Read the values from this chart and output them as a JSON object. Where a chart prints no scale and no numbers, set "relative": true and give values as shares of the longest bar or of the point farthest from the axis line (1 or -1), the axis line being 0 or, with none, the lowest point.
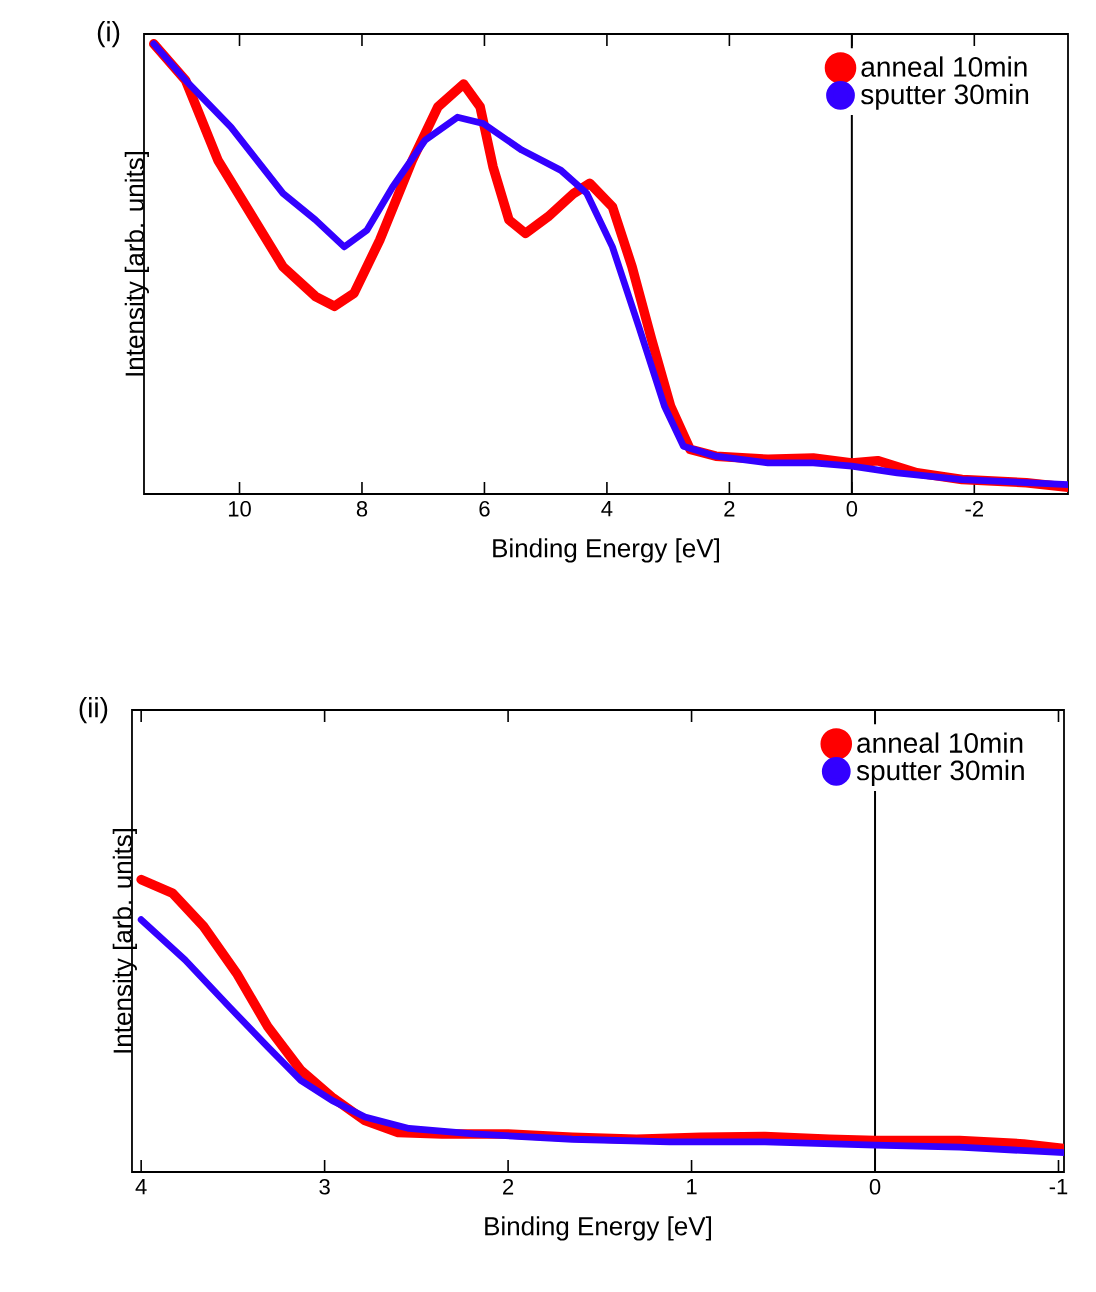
{
  "chart_data": [
    {
      "type": "line",
      "title": "(i)",
      "xlabel": "Binding Energy [eV]",
      "ylabel": "Intensity [arb. units]",
      "relative": true,
      "xlim": [
        11.56,
        -3.53
      ],
      "xticks": [
        10,
        8,
        6,
        4,
        2,
        0,
        -2
      ],
      "tick_labels": "x",
      "legend": "top right",
      "marker": "none",
      "line_style": "solid",
      "grid": false,
      "ref_lines": [
        {
          "axis": "x",
          "value": 0,
          "color": "#000000"
        }
      ],
      "series": [
        {
          "name": "anneal 10min",
          "color": "#ff0000",
          "x": [
            11.4,
            10.88,
            10.35,
            9.82,
            9.29,
            8.76,
            8.45,
            8.13,
            7.71,
            7.18,
            6.76,
            6.34,
            6.07,
            5.86,
            5.6,
            5.33,
            4.96,
            4.54,
            4.28,
            3.91,
            3.59,
            3.27,
            2.96,
            2.64,
            2.22,
            1.37,
            0.63,
            0,
            -0.42,
            -1.06,
            -1.8,
            -2.85,
            -3.53
          ],
          "values": [
            1.0,
            0.919,
            0.741,
            0.623,
            0.505,
            0.439,
            0.417,
            0.446,
            0.564,
            0.741,
            0.86,
            0.911,
            0.86,
            0.727,
            0.609,
            0.579,
            0.616,
            0.668,
            0.69,
            0.638,
            0.505,
            0.343,
            0.195,
            0.099,
            0.084,
            0.077,
            0.08,
            0.069,
            0.074,
            0.047,
            0.032,
            0.025,
            0.015
          ]
        },
        {
          "name": "sputter 30min",
          "color": "#3300ff",
          "x": [
            11.4,
            10.88,
            10.14,
            9.29,
            8.76,
            8.29,
            7.92,
            7.5,
            6.97,
            6.44,
            6.02,
            5.39,
            4.75,
            4.33,
            3.91,
            3.48,
            3.06,
            2.75,
            2.22,
            1.37,
            0.63,
            0,
            -0.74,
            -1.8,
            -3.53
          ],
          "values": [
            1.0,
            0.919,
            0.815,
            0.668,
            0.609,
            0.549,
            0.586,
            0.682,
            0.786,
            0.837,
            0.823,
            0.764,
            0.719,
            0.668,
            0.549,
            0.372,
            0.195,
            0.106,
            0.084,
            0.069,
            0.069,
            0.062,
            0.047,
            0.032,
            0.021
          ]
        }
      ]
    },
    {
      "type": "line",
      "title": "(ii)",
      "xlabel": "Binding Energy [eV]",
      "ylabel": "Intensity [arb. units]",
      "relative": true,
      "xlim": [
        4.05,
        -1.03
      ],
      "xticks": [
        4,
        3,
        2,
        1,
        0,
        -1
      ],
      "tick_labels": "x",
      "legend": "top right",
      "marker": "none",
      "line_style": "solid",
      "grid": false,
      "ref_lines": [
        {
          "axis": "x",
          "value": 0,
          "color": "#000000"
        }
      ],
      "series": [
        {
          "name": "anneal 10min",
          "color": "#ff0000",
          "x": [
            4.0,
            3.83,
            3.66,
            3.48,
            3.31,
            3.13,
            2.96,
            2.78,
            2.6,
            2.36,
            2.0,
            1.65,
            1.3,
            0.95,
            0.6,
            0.25,
            0,
            -0.46,
            -0.81,
            -1.03
          ],
          "values": [
            1.0,
            0.954,
            0.84,
            0.68,
            0.497,
            0.348,
            0.256,
            0.176,
            0.135,
            0.13,
            0.13,
            0.119,
            0.112,
            0.119,
            0.121,
            0.112,
            0.108,
            0.108,
            0.096,
            0.08
          ]
        },
        {
          "name": "sputter 30min",
          "color": "#3300ff",
          "x": [
            4.0,
            3.76,
            3.52,
            3.31,
            3.13,
            2.96,
            2.78,
            2.54,
            2.19,
            1.65,
            1.12,
            0.6,
            0,
            -0.46,
            -1.03
          ],
          "values": [
            0.863,
            0.725,
            0.565,
            0.428,
            0.313,
            0.245,
            0.188,
            0.149,
            0.13,
            0.112,
            0.103,
            0.103,
            0.092,
            0.085,
            0.066
          ]
        }
      ]
    }
  ]
}
